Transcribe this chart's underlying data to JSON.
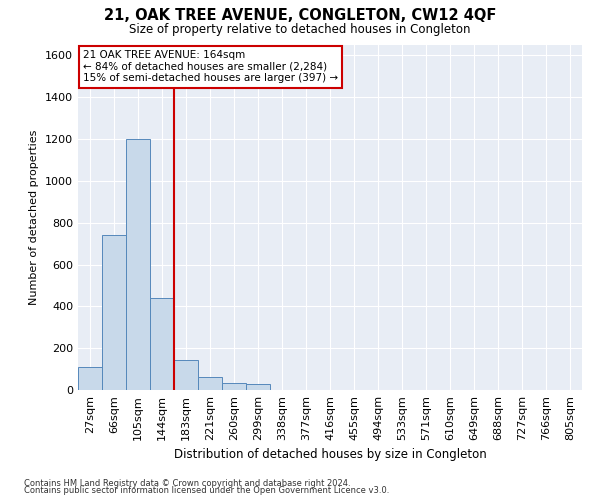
{
  "title": "21, OAK TREE AVENUE, CONGLETON, CW12 4QF",
  "subtitle": "Size of property relative to detached houses in Congleton",
  "xlabel": "Distribution of detached houses by size in Congleton",
  "ylabel": "Number of detached properties",
  "footnote1": "Contains HM Land Registry data © Crown copyright and database right 2024.",
  "footnote2": "Contains public sector information licensed under the Open Government Licence v3.0.",
  "annotation_line1": "21 OAK TREE AVENUE: 164sqm",
  "annotation_line2": "← 84% of detached houses are smaller (2,284)",
  "annotation_line3": "15% of semi-detached houses are larger (397) →",
  "bar_color": "#c8d9ea",
  "bar_edge_color": "#5588bb",
  "redline_color": "#cc0000",
  "bg_color": "#e8edf5",
  "grid_color": "#ffffff",
  "fig_bg_color": "#ffffff",
  "categories": [
    "27sqm",
    "66sqm",
    "105sqm",
    "144sqm",
    "183sqm",
    "221sqm",
    "260sqm",
    "299sqm",
    "338sqm",
    "377sqm",
    "416sqm",
    "455sqm",
    "494sqm",
    "533sqm",
    "571sqm",
    "610sqm",
    "649sqm",
    "688sqm",
    "727sqm",
    "766sqm",
    "805sqm"
  ],
  "bar_heights": [
    110,
    740,
    1200,
    440,
    145,
    60,
    35,
    30,
    0,
    0,
    0,
    0,
    0,
    0,
    0,
    0,
    0,
    0,
    0,
    0,
    0
  ],
  "redline_x": 3.5,
  "ylim": [
    0,
    1650
  ],
  "yticks": [
    0,
    200,
    400,
    600,
    800,
    1000,
    1200,
    1400,
    1600
  ],
  "figsize": [
    6.0,
    5.0
  ],
  "dpi": 100
}
